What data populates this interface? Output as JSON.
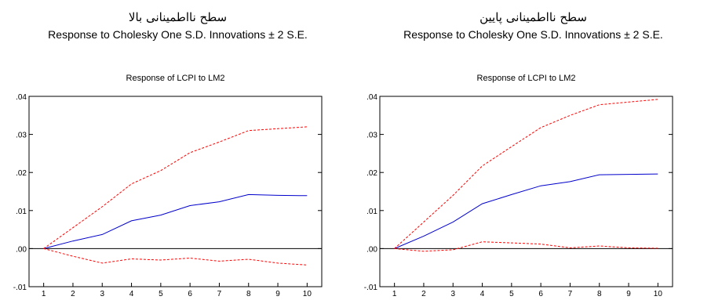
{
  "headers": [
    {
      "fa_title": "سطح نااطمینانی بالا",
      "en_title": "Response to Cholesky One S.D. Innovations ± 2 S.E."
    },
    {
      "fa_title": "سطح نااطمینانی پایین",
      "en_title": "Response to Cholesky One S.D. Innovations ± 2 S.E."
    }
  ],
  "colors": {
    "response": "#0000cc",
    "bands": "#ff0000",
    "zero_line": "#000000"
  },
  "chart_data": [
    {
      "type": "line",
      "title": "Response of LCPI to LM2",
      "x": [
        1,
        2,
        3,
        4,
        5,
        6,
        7,
        8,
        9,
        10
      ],
      "ylim": [
        -0.01,
        0.04
      ],
      "y_ticks": [
        -0.01,
        0.0,
        0.01,
        0.02,
        0.03,
        0.04
      ],
      "y_tick_labels": [
        "-.01",
        ".00",
        ".01",
        ".02",
        ".03",
        ".04"
      ],
      "grid": false,
      "zero_line": true,
      "series": [
        {
          "role": "response",
          "style": "solid",
          "values": [
            0.0,
            0.002,
            0.0037,
            0.0073,
            0.0088,
            0.0113,
            0.0123,
            0.0142,
            0.014,
            0.0139
          ]
        },
        {
          "role": "upper-band",
          "style": "dashed",
          "values": [
            0.0,
            0.0055,
            0.011,
            0.017,
            0.0205,
            0.0252,
            0.028,
            0.031,
            0.0315,
            0.032
          ]
        },
        {
          "role": "lower-band",
          "style": "dashed",
          "values": [
            0.0,
            -0.002,
            -0.0038,
            -0.0027,
            -0.003,
            -0.0025,
            -0.0033,
            -0.0028,
            -0.0038,
            -0.0043
          ]
        }
      ]
    },
    {
      "type": "line",
      "title": "Response of LCPI to LM2",
      "x": [
        1,
        2,
        3,
        4,
        5,
        6,
        7,
        8,
        9,
        10
      ],
      "ylim": [
        -0.01,
        0.04
      ],
      "y_ticks": [
        -0.01,
        0.0,
        0.01,
        0.02,
        0.03,
        0.04
      ],
      "y_tick_labels": [
        "-.01",
        ".00",
        ".01",
        ".02",
        ".03",
        ".04"
      ],
      "grid": false,
      "zero_line": true,
      "series": [
        {
          "role": "response",
          "style": "solid",
          "values": [
            0.0,
            0.0033,
            0.007,
            0.0118,
            0.0142,
            0.0165,
            0.0176,
            0.0194,
            0.0195,
            0.0196
          ]
        },
        {
          "role": "upper-band",
          "style": "dashed",
          "values": [
            0.0,
            0.007,
            0.014,
            0.0217,
            0.0268,
            0.0318,
            0.035,
            0.0378,
            0.0385,
            0.0392
          ]
        },
        {
          "role": "lower-band",
          "style": "dashed",
          "values": [
            0.0,
            -0.0007,
            -0.0003,
            0.0018,
            0.0015,
            0.0012,
            0.0002,
            0.0007,
            0.0002,
            0.0001
          ]
        }
      ]
    }
  ]
}
